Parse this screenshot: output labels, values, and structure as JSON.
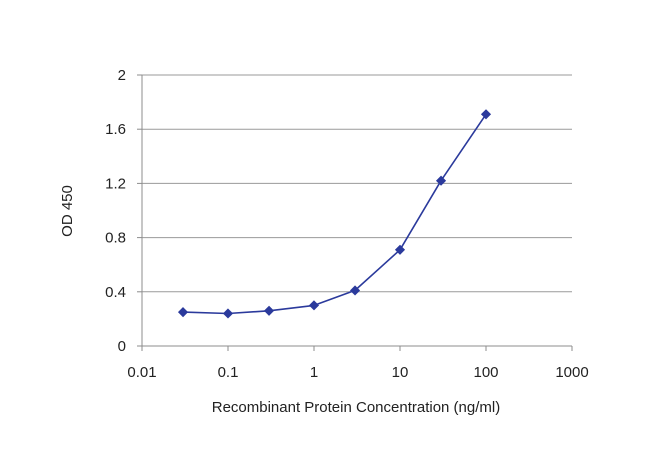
{
  "chart_data": {
    "type": "line",
    "title": "",
    "xlabel": "Recombinant Protein Concentration (ng/ml)",
    "ylabel": "OD 450",
    "x_scale": "log",
    "xlim": [
      0.01,
      1000
    ],
    "ylim": [
      0,
      2
    ],
    "x_ticks": [
      "0.01",
      "0.1",
      "1",
      "10",
      "100",
      "1000"
    ],
    "y_ticks": [
      "0",
      "0.4",
      "0.8",
      "1.2",
      "1.6",
      "2"
    ],
    "grid": "horizontal",
    "legend": "none",
    "colors": {
      "series": "#2b3a9c",
      "grid": "#9a9a9a",
      "text": "#222222"
    },
    "series": [
      {
        "x": [
          0.03,
          0.1,
          0.3,
          1,
          3,
          10,
          30,
          100
        ],
        "values": [
          0.25,
          0.24,
          0.26,
          0.3,
          0.41,
          0.71,
          1.22,
          1.71
        ]
      }
    ]
  }
}
